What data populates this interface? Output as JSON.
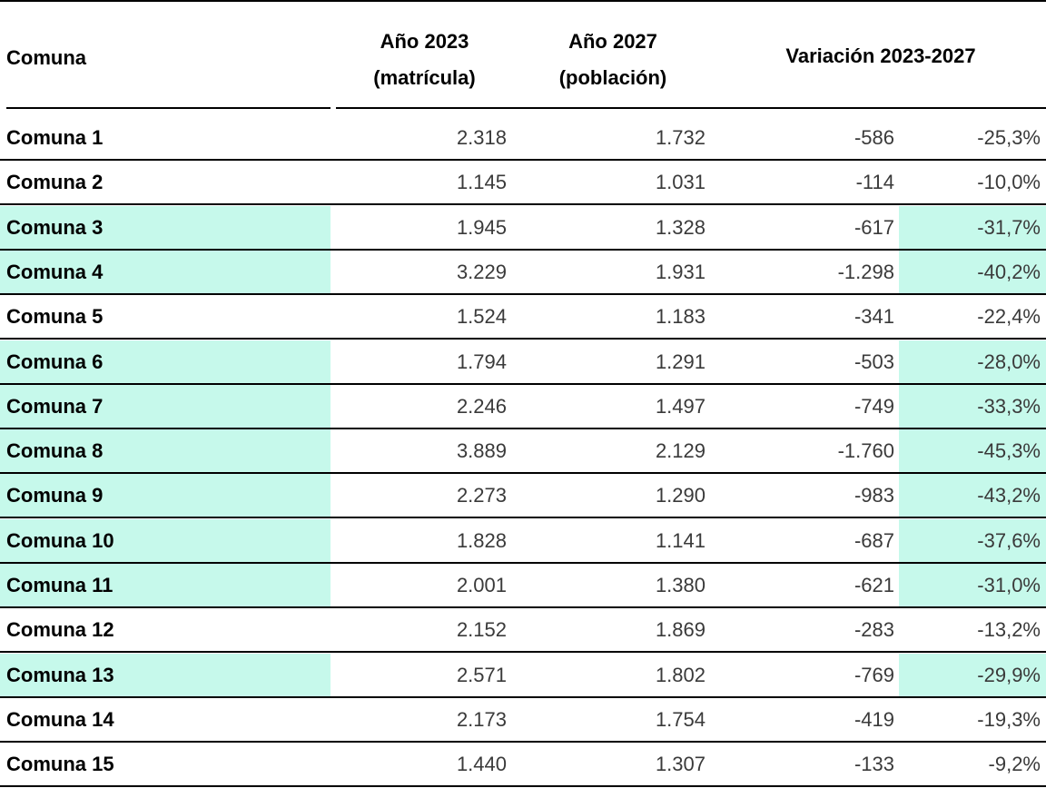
{
  "header": {
    "comuna": "Comuna",
    "anio2023_line1": "Año 2023",
    "anio2023_line2": "(matrícula)",
    "anio2027_line1": "Año 2027",
    "anio2027_line2": "(población)",
    "variacion": "Variación 2023-2027"
  },
  "highlight_color": "#c6f9eb",
  "rows": [
    {
      "name": "Comuna 1",
      "y2023": "2.318",
      "y2027": "1.732",
      "var_abs": "-586",
      "var_pct": "-25,3%",
      "highlighted": false
    },
    {
      "name": "Comuna 2",
      "y2023": "1.145",
      "y2027": "1.031",
      "var_abs": "-114",
      "var_pct": "-10,0%",
      "highlighted": false
    },
    {
      "name": "Comuna 3",
      "y2023": "1.945",
      "y2027": "1.328",
      "var_abs": "-617",
      "var_pct": "-31,7%",
      "highlighted": true
    },
    {
      "name": "Comuna 4",
      "y2023": "3.229",
      "y2027": "1.931",
      "var_abs": "-1.298",
      "var_pct": "-40,2%",
      "highlighted": true
    },
    {
      "name": "Comuna 5",
      "y2023": "1.524",
      "y2027": "1.183",
      "var_abs": "-341",
      "var_pct": "-22,4%",
      "highlighted": false
    },
    {
      "name": "Comuna 6",
      "y2023": "1.794",
      "y2027": "1.291",
      "var_abs": "-503",
      "var_pct": "-28,0%",
      "highlighted": true
    },
    {
      "name": "Comuna 7",
      "y2023": "2.246",
      "y2027": "1.497",
      "var_abs": "-749",
      "var_pct": "-33,3%",
      "highlighted": true
    },
    {
      "name": "Comuna 8",
      "y2023": "3.889",
      "y2027": "2.129",
      "var_abs": "-1.760",
      "var_pct": "-45,3%",
      "highlighted": true
    },
    {
      "name": "Comuna 9",
      "y2023": "2.273",
      "y2027": "1.290",
      "var_abs": "-983",
      "var_pct": "-43,2%",
      "highlighted": true
    },
    {
      "name": "Comuna 10",
      "y2023": "1.828",
      "y2027": "1.141",
      "var_abs": "-687",
      "var_pct": "-37,6%",
      "highlighted": true
    },
    {
      "name": "Comuna 11",
      "y2023": "2.001",
      "y2027": "1.380",
      "var_abs": "-621",
      "var_pct": "-31,0%",
      "highlighted": true
    },
    {
      "name": "Comuna 12",
      "y2023": "2.152",
      "y2027": "1.869",
      "var_abs": "-283",
      "var_pct": "-13,2%",
      "highlighted": false
    },
    {
      "name": "Comuna 13",
      "y2023": "2.571",
      "y2027": "1.802",
      "var_abs": "-769",
      "var_pct": "-29,9%",
      "highlighted": true
    },
    {
      "name": "Comuna 14",
      "y2023": "2.173",
      "y2027": "1.754",
      "var_abs": "-419",
      "var_pct": "-19,3%",
      "highlighted": false
    },
    {
      "name": "Comuna 15",
      "y2023": "1.440",
      "y2027": "1.307",
      "var_abs": "-133",
      "var_pct": "-9,2%",
      "highlighted": false
    }
  ]
}
